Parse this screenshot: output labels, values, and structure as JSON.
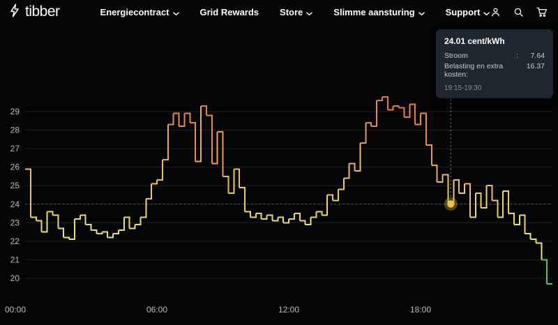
{
  "nav": {
    "logo_text": "tibber",
    "items": [
      {
        "label": "Energiecontract",
        "dropdown": true
      },
      {
        "label": "Grid Rewards",
        "dropdown": false
      },
      {
        "label": "Store",
        "dropdown": true
      },
      {
        "label": "Slimme aansturing",
        "dropdown": true
      },
      {
        "label": "Support",
        "dropdown": true
      }
    ],
    "icons": [
      "account-icon",
      "search-icon",
      "cart-icon"
    ]
  },
  "tooltip": {
    "title": "24.01 cent/kWh",
    "rows": [
      {
        "label": "Stroom",
        "colon": ":",
        "value": "7.64"
      },
      {
        "label": "Belasting en extra kosten:",
        "value": "16.37"
      }
    ],
    "time_range": "19:15-19:30"
  },
  "chart_data": {
    "type": "line",
    "subtype": "step",
    "unit": "cent/kWh",
    "interval_minutes": 15,
    "x_start": "00:00",
    "x_ticks": [
      "00:00",
      "06:00",
      "12:00",
      "18:00"
    ],
    "y_ticks": [
      20,
      21,
      22,
      23,
      24,
      25,
      26,
      27,
      28,
      29
    ],
    "ylim": [
      19.0,
      30.3
    ],
    "grid": "horizontal",
    "reference_line": 24,
    "highlight": {
      "time": "19:15",
      "value": 24.01,
      "dot_color": "#f0c23e"
    },
    "color_scale": [
      {
        "min": 29,
        "color": "#ed7d2f"
      },
      {
        "min": 28,
        "color": "#ef8c35"
      },
      {
        "min": 27,
        "color": "#f19c3d"
      },
      {
        "min": 26,
        "color": "#f2ac45"
      },
      {
        "min": 25,
        "color": "#f2bf4e"
      },
      {
        "min": 24,
        "color": "#f1cd57"
      },
      {
        "min": 23,
        "color": "#efda60"
      },
      {
        "min": 21.5,
        "color": "#ece269"
      },
      {
        "min": 0,
        "color": "#46cf68"
      }
    ],
    "values": [
      25.9,
      23.3,
      23.1,
      22.5,
      23.6,
      23.4,
      22.7,
      22.2,
      22.1,
      23.2,
      23.4,
      22.9,
      22.6,
      22.4,
      22.5,
      22.2,
      22.4,
      22.6,
      23.3,
      22.7,
      22.9,
      23.3,
      24.3,
      25.1,
      25.3,
      26.4,
      28.3,
      28.9,
      28.2,
      28.9,
      28.4,
      26.3,
      29.3,
      28.8,
      26.2,
      27.9,
      25.5,
      24.6,
      25.9,
      24.9,
      23.6,
      23.3,
      23.5,
      23.2,
      23.4,
      23.1,
      23.3,
      23.0,
      23.2,
      23.5,
      23.1,
      22.9,
      23.3,
      23.6,
      23.4,
      24.5,
      24.2,
      24.8,
      25.4,
      26.2,
      25.8,
      27.3,
      28.4,
      28.2,
      29.6,
      29.8,
      29.1,
      29.3,
      29.2,
      28.7,
      29.4,
      28.3,
      28.9,
      27.2,
      26.1,
      25.2,
      25.6,
      24.01,
      25.3,
      24.6,
      25.1,
      23.3,
      24.6,
      23.8,
      25.0,
      24.2,
      23.3,
      24.7,
      23.5,
      22.9,
      23.4,
      22.4,
      22.1,
      21.9,
      21.0,
      19.7
    ]
  }
}
